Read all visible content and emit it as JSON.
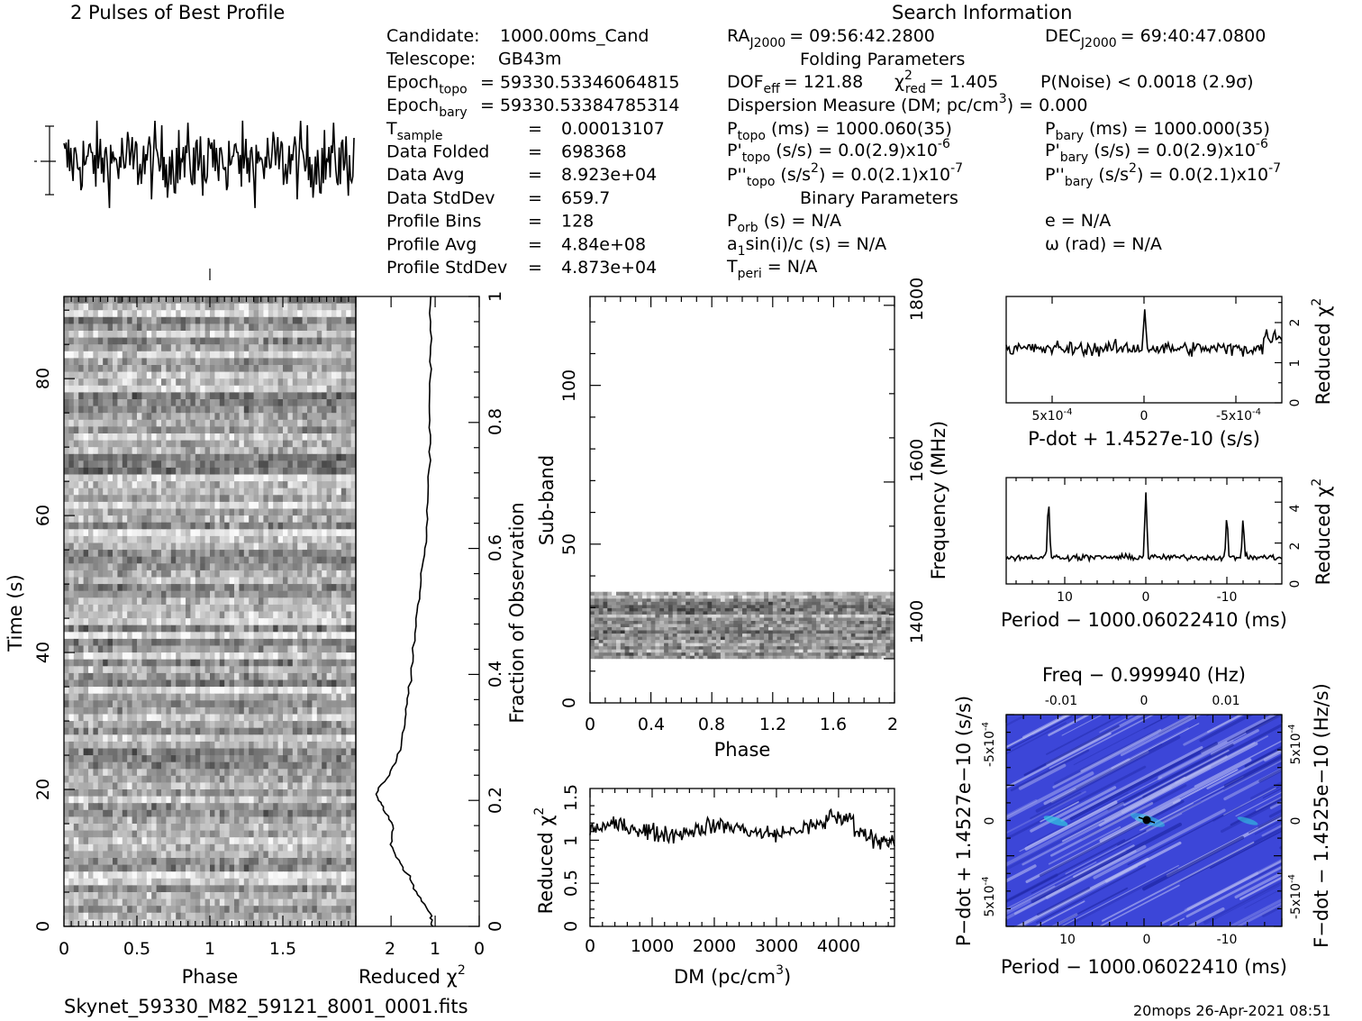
{
  "header": {
    "profile_title": "2 Pulses of Best Profile",
    "search_title": "Search Information",
    "folding_title": "Folding Parameters",
    "binary_title": "Binary Parameters",
    "filename": "Skynet_59330_M82_59121_8001_0001.fits",
    "footer_stamp": "20mops 26-Apr-2021 08:51"
  },
  "candidate_info": [
    {
      "label": "Candidate:",
      "value": "1000.00ms_Cand",
      "sub": ""
    },
    {
      "label": "Telescope:",
      "value": "GB43m",
      "sub": ""
    },
    {
      "label": "Epoch",
      "sub": "topo",
      "value": "= 59330.53346064815"
    },
    {
      "label": "Epoch",
      "sub": "bary",
      "value": "= 59330.53384785314"
    },
    {
      "label": "T",
      "sub": "sample",
      "value": "0.00013107"
    },
    {
      "label": "Data Folded",
      "sub": "",
      "value": "698368"
    },
    {
      "label": "Data Avg",
      "sub": "",
      "value": "8.923e+04"
    },
    {
      "label": "Data StdDev",
      "sub": "",
      "value": "659.7"
    },
    {
      "label": "Profile Bins",
      "sub": "",
      "value": "128"
    },
    {
      "label": "Profile Avg",
      "sub": "",
      "value": "4.84e+08"
    },
    {
      "label": "Profile StdDev",
      "sub": "",
      "value": "4.873e+04"
    }
  ],
  "search_info": {
    "ra_label": "RA",
    "ra_sub": "J2000",
    "ra_value": "= 09:56:42.2800",
    "dec_label": "DEC",
    "dec_sub": "J2000",
    "dec_value": "= 69:40:47.0800",
    "dof_label": "DOF",
    "dof_sub": "eff",
    "dof_value": "= 121.88",
    "chi_label": "χ",
    "chi_sub": "red",
    "chi_value": "= 1.405",
    "pnoise": "P(Noise) < 0.0018   (2.9σ)",
    "dm_line": "Dispersion Measure (DM; pc/cm",
    "dm_value": ") = 0.000",
    "ptopo_label": "P",
    "ptopo_sub": "topo",
    "ptopo_value": "(ms) =  1000.060(35)",
    "pbary_label": "P",
    "pbary_sub": "bary",
    "pbary_value": "(ms) =  1000.000(35)",
    "pdtopo_label": "P'",
    "pdtopo_sub": "topo",
    "pdtopo_value": "(s/s) = 0.0(2.9)x10",
    "pdtopo_exp": "-6",
    "pdbary_label": "P'",
    "pdbary_sub": "bary",
    "pdbary_value": "(s/s) = 0.0(2.9)x10",
    "pdbary_exp": "-6",
    "pddtopo_label": "P''",
    "pddtopo_sub": "topo",
    "pddtopo_value": "(s/s",
    "pddtopo_tail": ") = 0.0(2.1)x10",
    "pddtopo_exp": "-7",
    "pddbary_label": "P''",
    "pddbary_sub": "bary",
    "pddbary_value": "(s/s",
    "pddbary_tail": ") = 0.0(2.1)x10",
    "pddbary_exp": "-7",
    "porb_label": "P",
    "porb_sub": "orb",
    "porb_value": "(s) = N/A",
    "e_value": "e = N/A",
    "a1_label": "a",
    "a1_sub": "1",
    "a1_value": "sin(i)/c (s) = N/A",
    "omega_value": "ω (rad) = N/A",
    "tperi_label": "T",
    "tperi_sub": "peri",
    "tperi_value": "= N/A"
  },
  "chart_data": [
    {
      "type": "line",
      "title": "2 Pulses of Best Profile",
      "description": "pulse profile repeated twice (2 rotations), noise-like",
      "xlabel": "",
      "ylabel": "",
      "xlim": [
        0,
        2
      ],
      "n_bins": 256
    },
    {
      "type": "heatmap",
      "name": "time-phase",
      "xlabel": "Phase",
      "ylabel": "Time (s)",
      "xlim": [
        0,
        2
      ],
      "ylim": [
        0,
        92
      ],
      "xticks": [
        "0",
        "0.5",
        "1",
        "1.5"
      ],
      "yticks": [
        "0",
        "20",
        "40",
        "60",
        "80"
      ]
    },
    {
      "type": "line",
      "name": "time-chi2",
      "xlabel": "Reduced χ",
      "xticks": [
        "2",
        "1",
        "0"
      ],
      "y2label": "Fraction of Observation",
      "y2ticks": [
        "0",
        "0.2",
        "0.4",
        "0.6",
        "0.8",
        "1"
      ],
      "points": [
        [
          1.05,
          0
        ],
        [
          1.1,
          0.02
        ],
        [
          1.4,
          0.05
        ],
        [
          1.6,
          0.08
        ],
        [
          1.8,
          0.1
        ],
        [
          2.0,
          0.13
        ],
        [
          1.95,
          0.16
        ],
        [
          2.2,
          0.19
        ],
        [
          2.35,
          0.21
        ],
        [
          2.05,
          0.24
        ],
        [
          1.8,
          0.28
        ],
        [
          1.7,
          0.32
        ],
        [
          1.6,
          0.37
        ],
        [
          1.5,
          0.43
        ],
        [
          1.4,
          0.5
        ],
        [
          1.3,
          0.56
        ],
        [
          1.2,
          0.62
        ],
        [
          1.15,
          0.7
        ],
        [
          1.12,
          0.78
        ],
        [
          1.12,
          0.85
        ],
        [
          1.1,
          0.92
        ],
        [
          1.1,
          1.0
        ]
      ]
    },
    {
      "type": "heatmap",
      "name": "subband-phase",
      "xlabel": "Phase",
      "ylabel": "Sub-band",
      "y2label": "Frequency (MHz)",
      "xlim": [
        0,
        2
      ],
      "ylim": [
        0,
        128
      ],
      "xticks": [
        "0",
        "0.4",
        "0.8",
        "1.2",
        "1.6",
        "2"
      ],
      "yticks": [
        "0",
        "50",
        "100"
      ],
      "y2ticks": [
        "1400",
        "1600",
        "1800"
      ],
      "occupied_subbands": [
        14,
        35
      ]
    },
    {
      "type": "line",
      "name": "dm-chi2",
      "xlabel": "DM (pc/cm",
      "xlabel_exp": "3",
      "xlabel_tail": ")",
      "ylabel": "Reduced χ",
      "xlim": [
        0,
        4900
      ],
      "ylim": [
        0,
        1.6
      ],
      "xticks": [
        "0",
        "1000",
        "2000",
        "3000",
        "4000"
      ],
      "yticks": [
        "0",
        "0.5",
        "1",
        "1.5"
      ]
    },
    {
      "type": "line",
      "name": "pdot-chi2",
      "xlabel": "P-dot + 1.4527e-10 (s/s)",
      "ylabel": "Reduced χ",
      "xticks": [
        "5x10",
        "0",
        "-5x10"
      ],
      "xtick_exp": "-4",
      "yticks": [
        "0",
        "1",
        "2"
      ]
    },
    {
      "type": "line",
      "name": "period-chi2",
      "xlabel": "Period − 1000.06022410 (ms)",
      "ylabel": "Reduced χ",
      "xticks": [
        "10",
        "0",
        "-10"
      ],
      "yticks": [
        "0",
        "2",
        "4"
      ],
      "peaks": [
        {
          "x": 12,
          "y": 4.4
        },
        {
          "x": 0,
          "y": 4.6
        },
        {
          "x": -10,
          "y": 3.6
        },
        {
          "x": -12,
          "y": 3.4
        }
      ]
    },
    {
      "type": "heatmap",
      "name": "period-pdot",
      "xlabel": "Period − 1000.06022410 (ms)",
      "ylabel": "P−dot + 1.4527e−10 (s/s)",
      "top_label": "Freq − 0.999940 (Hz)",
      "right_label": "F−dot − 1.4525e−10 (Hz/s)",
      "xticks": [
        "10",
        "0",
        "-10"
      ],
      "top_ticks": [
        "-0.01",
        "0",
        "0.01"
      ],
      "yticks": [
        "-5x10",
        "0",
        "5x10"
      ],
      "ytick_exp": "-4",
      "right_ticks": [
        "5x10",
        "0",
        "-5x10"
      ],
      "right_tick_exp": "-4",
      "colors": {
        "base": "#3c46d8",
        "light": "#b8bcf2",
        "dark": "#1c24a0",
        "cyan": "#30c8e0"
      }
    }
  ]
}
